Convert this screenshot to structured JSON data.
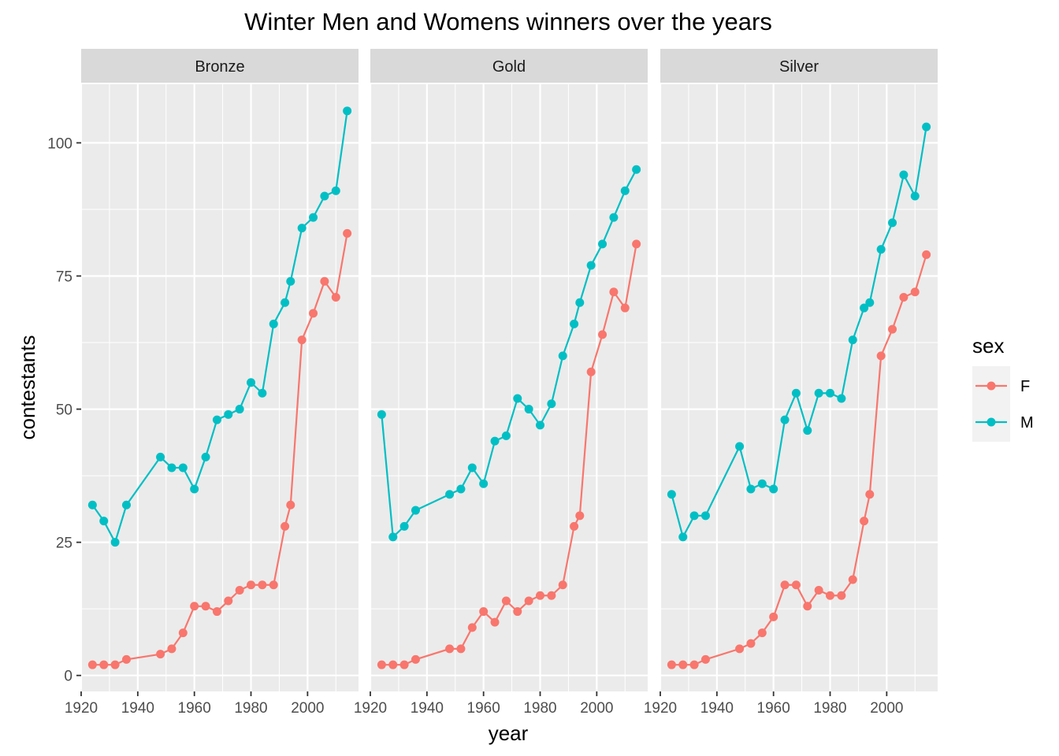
{
  "chart_data": {
    "type": "line",
    "title": "Winter Men and Womens winners over the years",
    "xlabel": "year",
    "ylabel": "contestants",
    "xlim": [
      1920,
      2018
    ],
    "ylim": [
      -3,
      111
    ],
    "x_ticks": [
      1920,
      1940,
      1960,
      1980,
      2000
    ],
    "y_ticks": [
      0,
      25,
      50,
      75,
      100
    ],
    "grid": true,
    "legend": {
      "title": "sex",
      "position": "right",
      "entries": [
        "F",
        "M"
      ]
    },
    "colors": {
      "F": "#F8766D",
      "M": "#00BFC4"
    },
    "panels": [
      {
        "label": "Bronze",
        "series": [
          {
            "name": "F",
            "x": [
              1924,
              1928,
              1932,
              1936,
              1948,
              1952,
              1956,
              1960,
              1964,
              1968,
              1972,
              1976,
              1980,
              1984,
              1988,
              1992,
              1994,
              1998,
              2002,
              2006,
              2010,
              2014
            ],
            "y": [
              2,
              2,
              2,
              3,
              4,
              5,
              8,
              13,
              13,
              12,
              14,
              16,
              17,
              17,
              17,
              28,
              32,
              63,
              68,
              74,
              71,
              83
            ]
          },
          {
            "name": "M",
            "x": [
              1924,
              1928,
              1932,
              1936,
              1948,
              1952,
              1956,
              1960,
              1964,
              1968,
              1972,
              1976,
              1980,
              1984,
              1988,
              1992,
              1994,
              1998,
              2002,
              2006,
              2010,
              2014
            ],
            "y": [
              32,
              29,
              25,
              32,
              41,
              39,
              39,
              35,
              41,
              48,
              49,
              50,
              55,
              53,
              66,
              70,
              74,
              84,
              86,
              90,
              91,
              106
            ]
          }
        ]
      },
      {
        "label": "Gold",
        "series": [
          {
            "name": "F",
            "x": [
              1924,
              1928,
              1932,
              1936,
              1948,
              1952,
              1956,
              1960,
              1964,
              1968,
              1972,
              1976,
              1980,
              1984,
              1988,
              1992,
              1994,
              1998,
              2002,
              2006,
              2010,
              2014
            ],
            "y": [
              2,
              2,
              2,
              3,
              5,
              5,
              9,
              12,
              10,
              14,
              12,
              14,
              15,
              15,
              17,
              28,
              30,
              57,
              64,
              72,
              69,
              81
            ]
          },
          {
            "name": "M",
            "x": [
              1924,
              1928,
              1932,
              1936,
              1948,
              1952,
              1956,
              1960,
              1964,
              1968,
              1972,
              1976,
              1980,
              1984,
              1988,
              1992,
              1994,
              1998,
              2002,
              2006,
              2010,
              2014
            ],
            "y": [
              49,
              26,
              28,
              31,
              34,
              35,
              39,
              36,
              44,
              45,
              52,
              50,
              47,
              51,
              60,
              66,
              70,
              77,
              81,
              86,
              91,
              95
            ]
          }
        ]
      },
      {
        "label": "Silver",
        "series": [
          {
            "name": "F",
            "x": [
              1924,
              1928,
              1932,
              1936,
              1948,
              1952,
              1956,
              1960,
              1964,
              1968,
              1972,
              1976,
              1980,
              1984,
              1988,
              1992,
              1994,
              1998,
              2002,
              2006,
              2010,
              2014
            ],
            "y": [
              2,
              2,
              2,
              3,
              5,
              6,
              8,
              11,
              17,
              17,
              13,
              16,
              15,
              15,
              18,
              29,
              34,
              60,
              65,
              71,
              72,
              79
            ]
          },
          {
            "name": "M",
            "x": [
              1924,
              1928,
              1932,
              1936,
              1948,
              1952,
              1956,
              1960,
              1964,
              1968,
              1972,
              1976,
              1980,
              1984,
              1988,
              1992,
              1994,
              1998,
              2002,
              2006,
              2010,
              2014
            ],
            "y": [
              34,
              26,
              30,
              30,
              43,
              35,
              36,
              35,
              48,
              53,
              46,
              53,
              53,
              52,
              63,
              69,
              70,
              80,
              85,
              94,
              90,
              103
            ]
          }
        ]
      }
    ]
  }
}
